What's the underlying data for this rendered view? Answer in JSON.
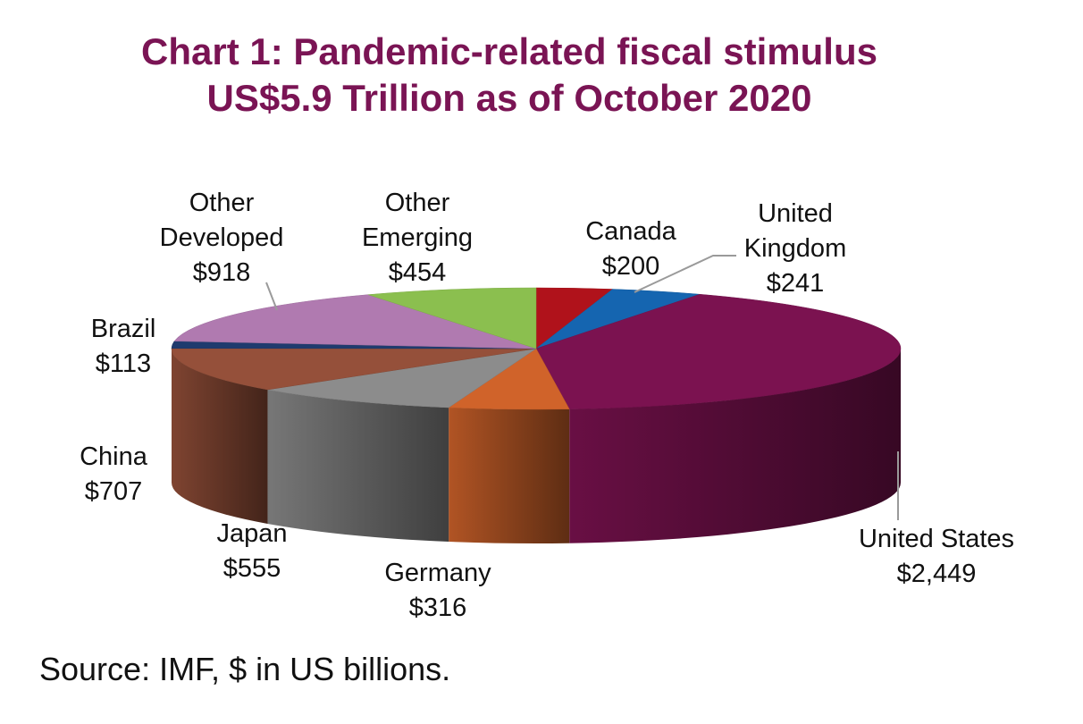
{
  "chart_data": {
    "type": "pie",
    "title": "Chart 1: Pandemic-related fiscal stimulus",
    "subtitle": "US$5.9 Trillion as of October 2020",
    "slices": [
      {
        "label": "Canada",
        "value": 200,
        "value_label": "$200",
        "color": "#b0121b"
      },
      {
        "label": "United Kingdom",
        "label_lines": [
          "United",
          "Kingdom"
        ],
        "value": 241,
        "value_label": "$241",
        "color": "#1565b0"
      },
      {
        "label": "United States",
        "value": 2449,
        "value_label": "$2,449",
        "color": "#7b1250"
      },
      {
        "label": "Germany",
        "value": 316,
        "value_label": "$316",
        "color": "#d0632a"
      },
      {
        "label": "Japan",
        "value": 555,
        "value_label": "$555",
        "color": "#8c8c8c"
      },
      {
        "label": "China",
        "value": 707,
        "value_label": "$707",
        "color": "#95503a"
      },
      {
        "label": "Brazil",
        "value": 113,
        "value_label": "$113",
        "color": "#1f3b6e"
      },
      {
        "label": "Other Developed",
        "label_lines": [
          "Other",
          "Developed"
        ],
        "value": 918,
        "value_label": "$918",
        "color": "#b07ab0"
      },
      {
        "label": "Other Emerging",
        "label_lines": [
          "Other",
          "Emerging"
        ],
        "value": 454,
        "value_label": "$454",
        "color": "#8bbf4f"
      }
    ],
    "source": "Source: IMF, $ in US billions."
  }
}
